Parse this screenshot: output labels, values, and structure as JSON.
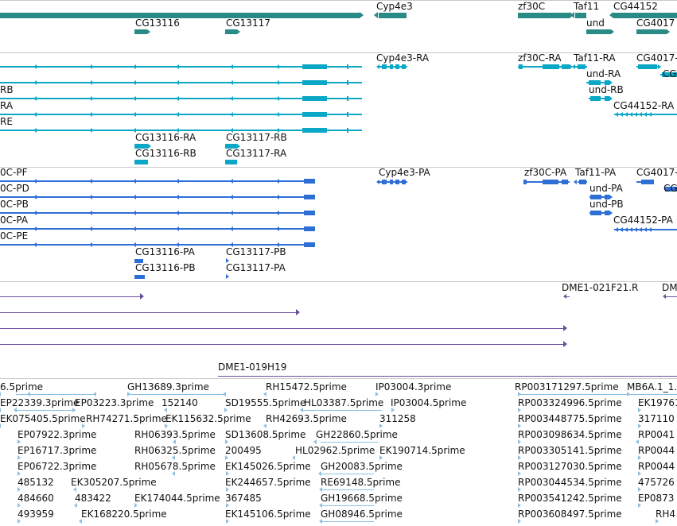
{
  "colors": {
    "gene": "#2a8a86",
    "transcript": "#0aa8c6",
    "cds": "#2e6fd6",
    "cdna": "#6a4fa0",
    "est": "#8cc0e2",
    "separator": "#c8c8c8"
  },
  "genes": {
    "labels": [
      "Cyp4e3",
      "zf30C",
      "Taf11",
      "CG44152",
      "CG13116",
      "CG13117",
      "und",
      "CG4017"
    ]
  },
  "transcripts": {
    "labels": [
      "Cyp4e3-RA",
      "zf30C-RA",
      "Taf11-RA",
      "CG4017-",
      "und-RA",
      "und-RB",
      "CG44152-RA",
      "RB",
      "RA",
      "RE",
      "CG13116-RA",
      "CG13117-RB",
      "CG13116-RB",
      "CG13117-RA",
      "CG"
    ]
  },
  "cds": {
    "labels": [
      "0C-PF",
      "Cyp4e3-PA",
      "zf30C-PA",
      "Taf11-PA",
      "CG4017-",
      "0C-PD",
      "und-PA",
      "CG",
      "0C-PB",
      "und-PB",
      "0C-PA",
      "CG44152-PA",
      "0C-PE",
      "CG13116-PA",
      "CG13117-PB",
      "CG13116-PB",
      "CG13117-PA"
    ]
  },
  "cdna": {
    "labels": [
      "DME1-021F21.R",
      "DM",
      "DME1-019H19"
    ]
  },
  "est": {
    "labels": [
      "6.5prime",
      "GH13689.3prime",
      "RH15472.5prime",
      "IP03004.3prime",
      "RP003171297.5prime",
      "MB6A.1_1.",
      "EP22339.3prime",
      "EP03223.3prime",
      "152140",
      "SD19555.5prime",
      "HL03387.5prime",
      "IP03004.5prime",
      "RP003324996.5prime",
      "EK19761",
      "EK075405.5prime",
      "RH74271.5prime",
      "EK115632.5prime",
      "RH42693.5prime",
      "311258",
      "RP003448775.5prime",
      "317110",
      "EP07922.3prime",
      "RH06393.5prime",
      "SD13608.5prime",
      "GH22860.5prime",
      "RP003098634.5prime",
      "RP0041",
      "EP16717.3prime",
      "RH06325.5prime",
      "200495",
      "HL02962.5prime",
      "EK190714.5prime",
      "RP003305141.5prime",
      "RP0044",
      "EP06722.3prime",
      "RH05678.5prime",
      "EK145026.5prime",
      "GH20083.5prime",
      "RP003127030.5prime",
      "RP0044",
      "485132",
      "EK305207.5prime",
      "EK244657.5prime",
      "RE69148.5prime",
      "RP003044534.5prime",
      "475726",
      "484660",
      "483422",
      "EK174044.5prime",
      "367485",
      "GH19668.5prime",
      "RP003541242.5prime",
      "EP0873",
      "493959",
      "EK168220.5prime",
      "EK145106.5prime",
      "GH08946.5prime",
      "RP003608497.5prime",
      "RH4"
    ]
  }
}
